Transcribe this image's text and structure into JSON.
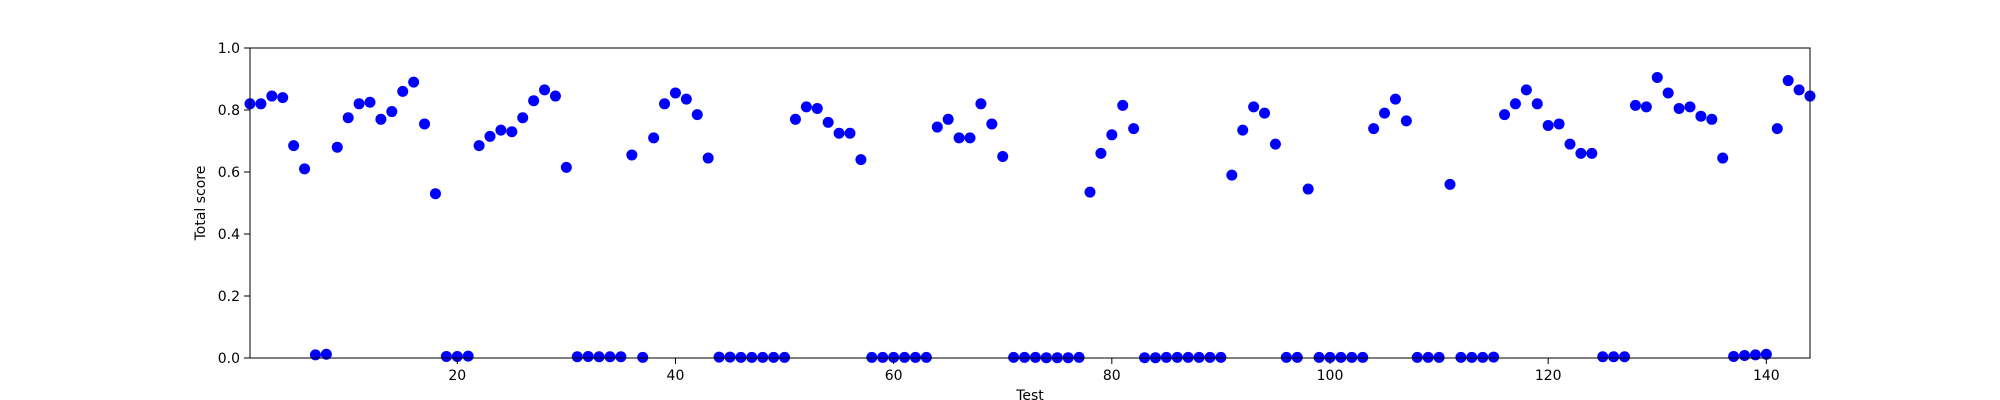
{
  "chart_data": {
    "type": "scatter",
    "title": "",
    "xlabel": "Test",
    "ylabel": "Total score",
    "xlim": [
      1,
      144
    ],
    "ylim": [
      0.0,
      1.0
    ],
    "xticks": [
      20,
      40,
      60,
      80,
      100,
      120,
      140
    ],
    "yticks": [
      0.0,
      0.2,
      0.4,
      0.6,
      0.8,
      1.0
    ],
    "ytick_labels": [
      "0.0",
      "0.2",
      "0.4",
      "0.6",
      "0.8",
      "1.0"
    ],
    "grid": false,
    "colors": {
      "marker": "#0000ff",
      "axes": "#000000",
      "background": "#ffffff"
    },
    "series": [
      {
        "x": [
          1,
          2,
          3,
          4,
          5,
          6,
          7,
          8,
          9,
          10,
          11,
          12,
          13,
          14,
          15,
          16,
          17,
          18,
          19,
          20,
          21,
          22,
          23,
          24,
          25,
          26,
          27,
          28,
          29,
          30,
          31,
          32,
          33,
          34,
          35,
          36,
          37,
          38,
          39,
          40,
          41,
          42,
          43,
          44,
          45,
          46,
          47,
          48,
          49,
          50,
          51,
          52,
          53,
          54,
          55,
          56,
          57,
          58,
          59,
          60,
          61,
          62,
          63,
          64,
          65,
          66,
          67,
          68,
          69,
          70,
          71,
          72,
          73,
          74,
          75,
          76,
          77,
          78,
          79,
          80,
          81,
          82,
          83,
          84,
          85,
          86,
          87,
          88,
          89,
          90,
          91,
          92,
          93,
          94,
          95,
          96,
          97,
          98,
          99,
          100,
          101,
          102,
          103,
          104,
          105,
          106,
          107,
          108,
          109,
          110,
          111,
          112,
          113,
          114,
          115,
          116,
          117,
          118,
          119,
          120,
          121,
          122,
          123,
          124,
          125,
          126,
          127,
          128,
          129,
          130,
          131,
          132,
          133,
          134,
          135,
          136,
          137,
          138,
          139,
          140,
          141,
          142,
          143,
          144
        ],
        "y": [
          0.82,
          0.82,
          0.845,
          0.84,
          0.685,
          0.61,
          0.01,
          0.012,
          0.68,
          0.775,
          0.82,
          0.825,
          0.77,
          0.795,
          0.86,
          0.89,
          0.755,
          0.53,
          0.005,
          0.005,
          0.006,
          0.685,
          0.715,
          0.735,
          0.73,
          0.775,
          0.83,
          0.865,
          0.845,
          0.615,
          0.004,
          0.005,
          0.004,
          0.004,
          0.004,
          0.655,
          0.002,
          0.71,
          0.82,
          0.855,
          0.835,
          0.785,
          0.645,
          0.003,
          0.003,
          0.002,
          0.002,
          0.002,
          0.002,
          0.002,
          0.77,
          0.81,
          0.805,
          0.76,
          0.725,
          0.725,
          0.64,
          0.002,
          0.002,
          0.002,
          0.002,
          0.002,
          0.002,
          0.745,
          0.77,
          0.71,
          0.71,
          0.82,
          0.755,
          0.65,
          0.002,
          0.002,
          0.002,
          0.001,
          0.001,
          0.001,
          0.002,
          0.535,
          0.66,
          0.72,
          0.815,
          0.74,
          0.001,
          0.001,
          0.002,
          0.002,
          0.002,
          0.002,
          0.002,
          0.002,
          0.59,
          0.735,
          0.81,
          0.79,
          0.69,
          0.002,
          0.002,
          0.545,
          0.002,
          0.002,
          0.002,
          0.002,
          0.002,
          0.74,
          0.79,
          0.835,
          0.765,
          0.002,
          0.002,
          0.002,
          0.56,
          0.002,
          0.002,
          0.002,
          0.003,
          0.785,
          0.82,
          0.865,
          0.82,
          0.75,
          0.755,
          0.69,
          0.66,
          0.66,
          0.004,
          0.004,
          0.004,
          0.815,
          0.81,
          0.905,
          0.855,
          0.805,
          0.81,
          0.78,
          0.77,
          0.645,
          0.005,
          0.008,
          0.01,
          0.012,
          0.74,
          0.895,
          0.865,
          0.845
        ]
      }
    ]
  }
}
